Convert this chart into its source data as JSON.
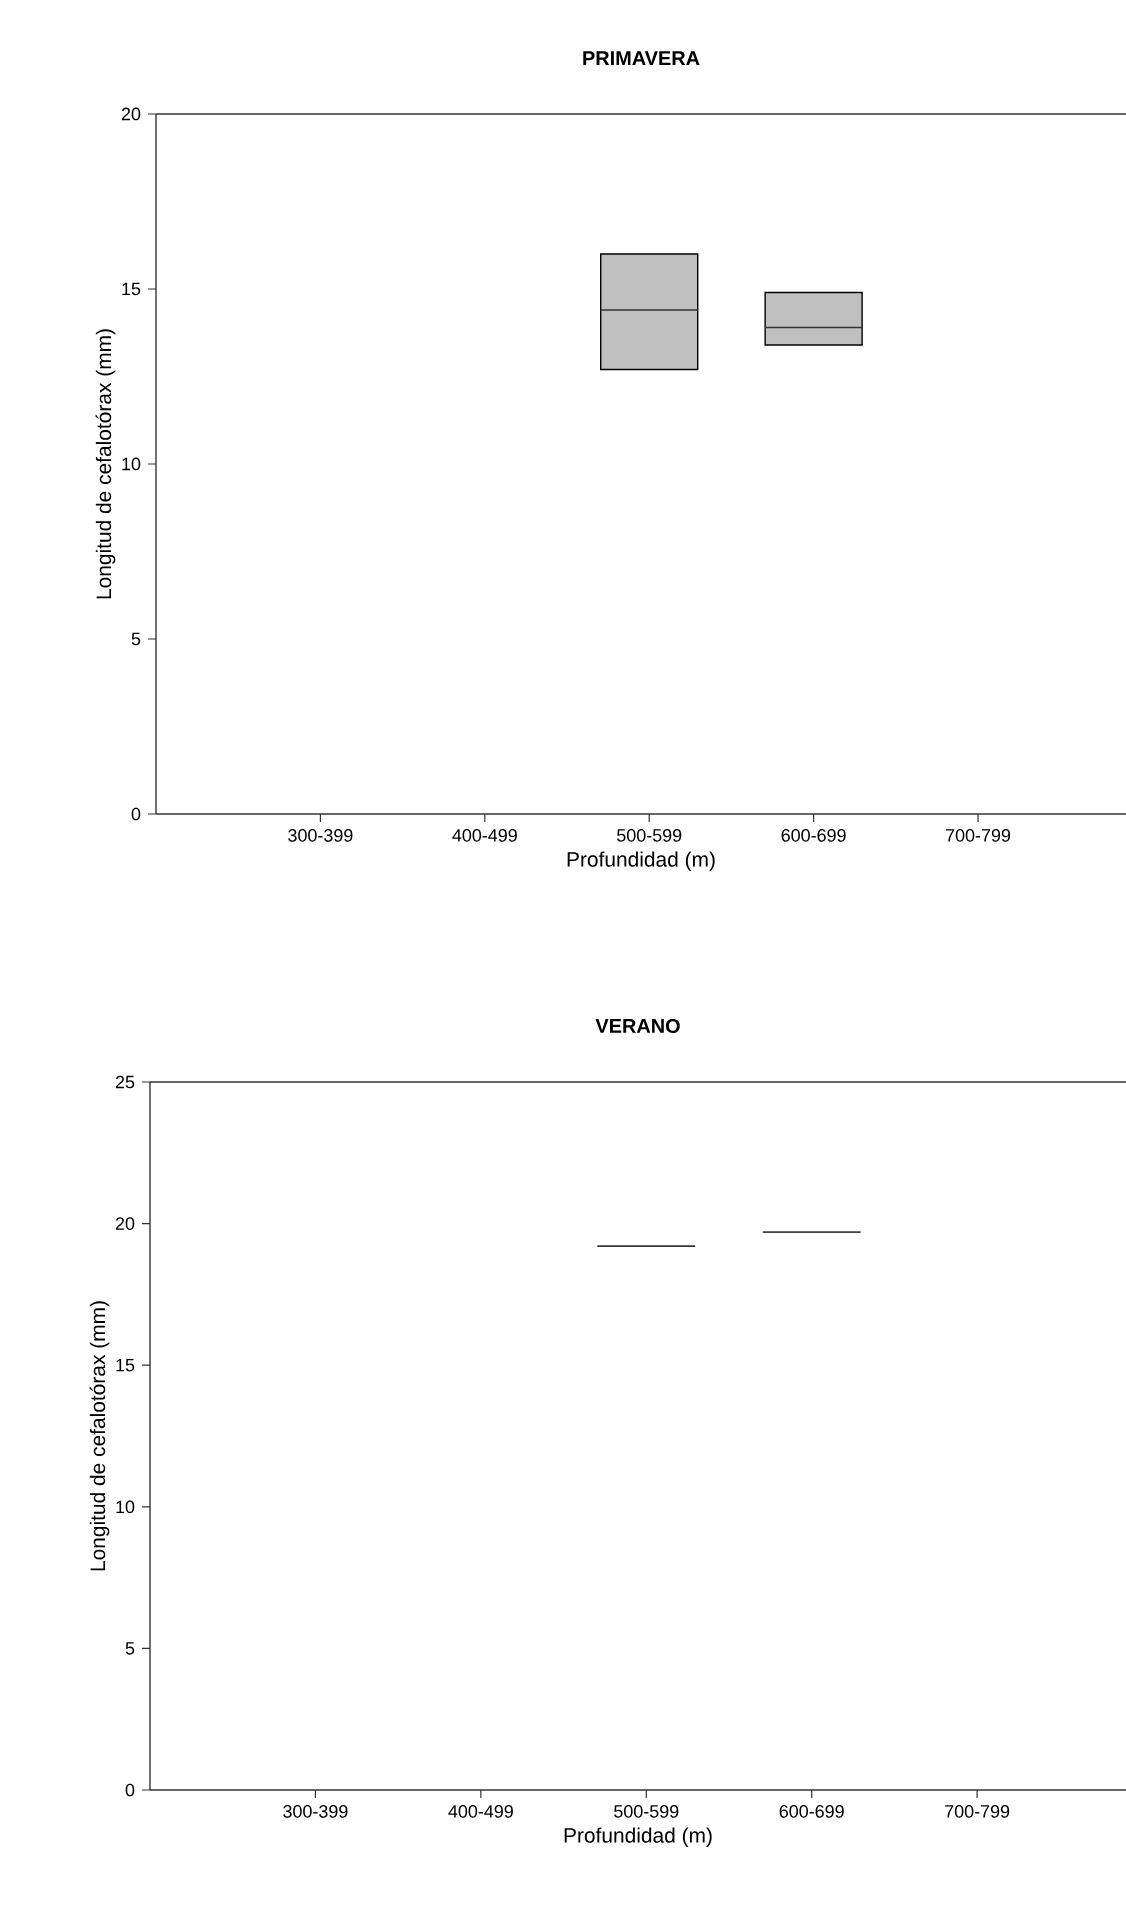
{
  "chart_data": [
    {
      "type": "box",
      "title": "PRIMAVERA",
      "xlabel": "Profundidad (m)",
      "ylabel": "Longitud de cefalotórax (mm)",
      "categories": [
        "300-399",
        "400-499",
        "500-599",
        "600-699",
        "700-799"
      ],
      "color": "#c0c0c0",
      "boxes": [
        null,
        null,
        {
          "low": 12.7,
          "q1": 12.7,
          "median": 14.4,
          "q3": 16.0,
          "high": 16.0
        },
        {
          "low": 13.4,
          "q1": 13.4,
          "median": 13.9,
          "q3": 14.9,
          "high": 14.9
        },
        null
      ],
      "ylim": [
        0,
        20
      ],
      "yticks": [
        0,
        5,
        10,
        15,
        20
      ]
    },
    {
      "type": "box",
      "title": "VERANO",
      "xlabel": "Profundidad (m)",
      "ylabel": "Longitud de cefalotórax (mm)",
      "categories": [
        "300-399",
        "400-499",
        "500-599",
        "600-699",
        "700-799"
      ],
      "boxes": [
        null,
        null,
        {
          "low": 19.2,
          "q1": 19.2,
          "median": 19.2,
          "q3": 19.2,
          "high": 19.2
        },
        {
          "low": 19.7,
          "q1": 19.7,
          "median": 19.7,
          "q3": 19.7,
          "high": 19.7
        },
        null
      ],
      "ylim": [
        0,
        25
      ],
      "yticks": [
        0,
        5,
        10,
        15,
        20,
        25
      ]
    }
  ]
}
